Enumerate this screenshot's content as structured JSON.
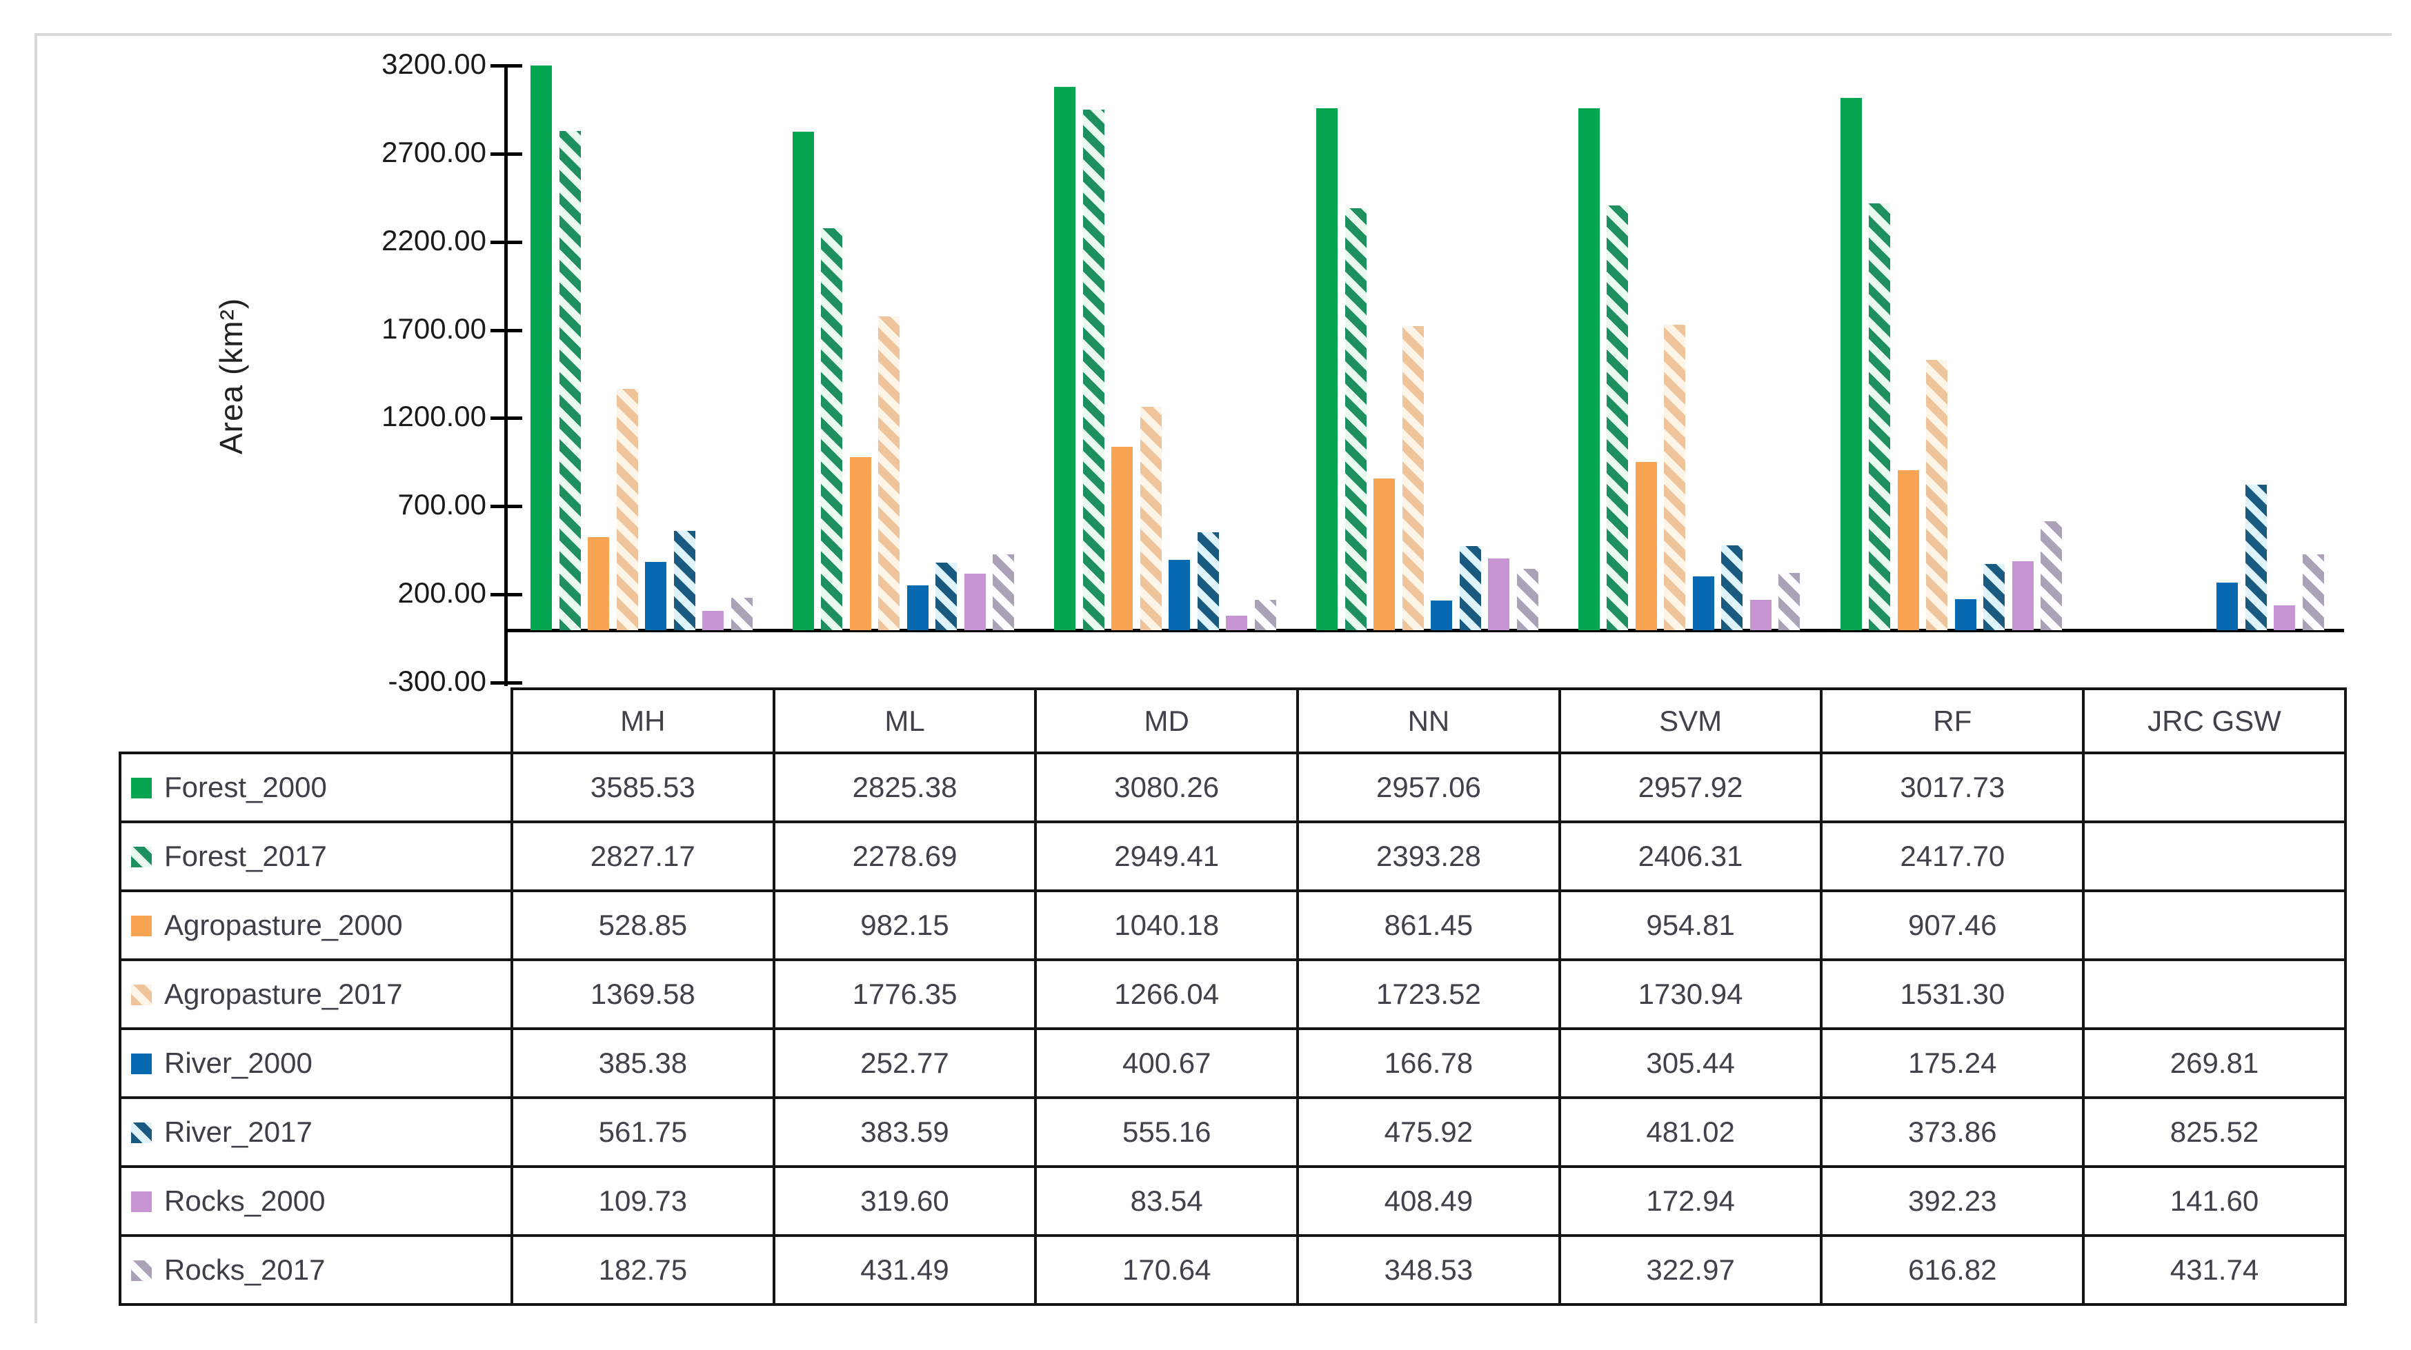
{
  "figure": {
    "background": "#ffffff",
    "frame_color": "#d9d9d9",
    "axis_color": "#000000",
    "table_border_color": "#141414",
    "text_color": "#1a1a1a"
  },
  "chart_data": {
    "type": "bar",
    "title": "",
    "xlabel": "",
    "ylabel": "Area (km²)",
    "categories": [
      "MH",
      "ML",
      "MD",
      "NN",
      "SVM",
      "RF",
      "JRC GSW"
    ],
    "series": [
      {
        "name": "Forest_2000",
        "pattern": "solid",
        "color": "#06a551",
        "bg": "#06a551",
        "values": [
          3585.53,
          2825.38,
          3080.26,
          2957.06,
          2957.92,
          3017.73,
          null
        ]
      },
      {
        "name": "Forest_2017",
        "pattern": "hatch",
        "color": "#1e8f5e",
        "bg": "#eaf9f0",
        "values": [
          2827.17,
          2278.69,
          2949.41,
          2393.28,
          2406.31,
          2417.7,
          null
        ]
      },
      {
        "name": "Agropasture_2000",
        "pattern": "solid",
        "color": "#f9a452",
        "bg": "#f9a452",
        "values": [
          528.85,
          982.15,
          1040.18,
          861.45,
          954.81,
          907.46,
          null
        ]
      },
      {
        "name": "Agropasture_2017",
        "pattern": "hatch",
        "color": "#efc49b",
        "bg": "#fdf4e8",
        "values": [
          1369.58,
          1776.35,
          1266.04,
          1723.52,
          1730.94,
          1531.3,
          null
        ]
      },
      {
        "name": "River_2000",
        "pattern": "solid",
        "color": "#0769af",
        "bg": "#0769af",
        "values": [
          385.38,
          252.77,
          400.67,
          166.78,
          305.44,
          175.24,
          269.81
        ]
      },
      {
        "name": "River_2017",
        "pattern": "hatch",
        "color": "#1a5a80",
        "bg": "#dff3fa",
        "values": [
          561.75,
          383.59,
          555.16,
          475.92,
          481.02,
          373.86,
          825.52
        ]
      },
      {
        "name": "Rocks_2000",
        "pattern": "solid",
        "color": "#c795d2",
        "bg": "#c795d2",
        "values": [
          109.73,
          319.6,
          83.54,
          408.49,
          172.94,
          392.23,
          141.6
        ]
      },
      {
        "name": "Rocks_2017",
        "pattern": "hatch",
        "color": "#aba2b8",
        "bg": "#fcfcfe",
        "values": [
          182.75,
          431.49,
          170.64,
          348.53,
          322.97,
          616.82,
          431.74
        ]
      }
    ],
    "yticks": [
      "3200.00",
      "2700.00",
      "2200.00",
      "1700.00",
      "1200.00",
      "700.00",
      "200.00",
      "-300.00"
    ],
    "ylim": [
      -300,
      3200
    ],
    "grid": false,
    "legend_position": "table-left-column",
    "value_format": "2-decimals"
  }
}
